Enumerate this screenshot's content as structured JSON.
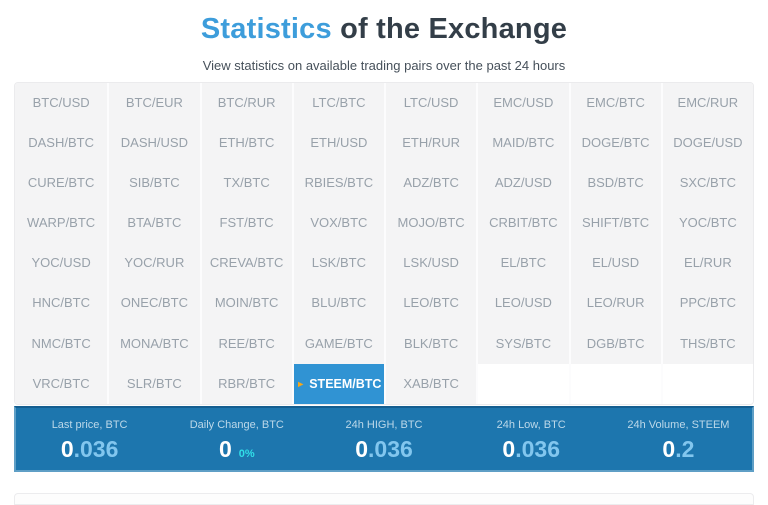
{
  "header": {
    "title_highlight": "Statistics",
    "title_rest": " of the Exchange",
    "subtitle": "View statistics on available trading pairs over the past 24 hours"
  },
  "pairs_grid": {
    "selected": "STEEM/BTC",
    "selected_arrow_icon": "►",
    "rows": [
      [
        "BTC/USD",
        "BTC/EUR",
        "BTC/RUR",
        "LTC/BTC",
        "LTC/USD",
        "EMC/USD",
        "EMC/BTC",
        "EMC/RUR"
      ],
      [
        "DASH/BTC",
        "DASH/USD",
        "ETH/BTC",
        "ETH/USD",
        "ETH/RUR",
        "MAID/BTC",
        "DOGE/BTC",
        "DOGE/USD"
      ],
      [
        "CURE/BTC",
        "SIB/BTC",
        "TX/BTC",
        "RBIES/BTC",
        "ADZ/BTC",
        "ADZ/USD",
        "BSD/BTC",
        "SXC/BTC"
      ],
      [
        "WARP/BTC",
        "BTA/BTC",
        "FST/BTC",
        "VOX/BTC",
        "MOJO/BTC",
        "CRBIT/BTC",
        "SHIFT/BTC",
        "YOC/BTC"
      ],
      [
        "YOC/USD",
        "YOC/RUR",
        "CREVA/BTC",
        "LSK/BTC",
        "LSK/USD",
        "EL/BTC",
        "EL/USD",
        "EL/RUR"
      ],
      [
        "HNC/BTC",
        "ONEC/BTC",
        "MOIN/BTC",
        "BLU/BTC",
        "LEO/BTC",
        "LEO/USD",
        "LEO/RUR",
        "PPC/BTC"
      ],
      [
        "NMC/BTC",
        "MONA/BTC",
        "REE/BTC",
        "GAME/BTC",
        "BLK/BTC",
        "SYS/BTC",
        "DGB/BTC",
        "THS/BTC"
      ],
      [
        "VRC/BTC",
        "SLR/BTC",
        "RBR/BTC",
        "STEEM/BTC",
        "XAB/BTC",
        "",
        "",
        ""
      ]
    ]
  },
  "stats": {
    "items": [
      {
        "label": "Last price, BTC",
        "value_int": "0",
        "value_frac": ".036",
        "badge": ""
      },
      {
        "label": "Daily Change, BTC",
        "value_int": "0",
        "value_frac": "",
        "badge": "0%"
      },
      {
        "label": "24h HIGH, BTC",
        "value_int": "0",
        "value_frac": ".036",
        "badge": ""
      },
      {
        "label": "24h Low, BTC",
        "value_int": "0",
        "value_frac": ".036",
        "badge": ""
      },
      {
        "label": "24h Volume, STEEM",
        "value_int": "0",
        "value_frac": ".2",
        "badge": ""
      }
    ]
  },
  "colors": {
    "title_accent": "#3d9ddb",
    "title_dark": "#333e48",
    "cell_bg": "#f4f4f5",
    "cell_text": "#98a1aa",
    "selected_bg": "#3093d3",
    "selected_arrow": "#f7a819",
    "stats_bar_bg": "#1d76ae",
    "stats_frac": "#82c6ee",
    "stats_badge": "#31dfe8"
  }
}
